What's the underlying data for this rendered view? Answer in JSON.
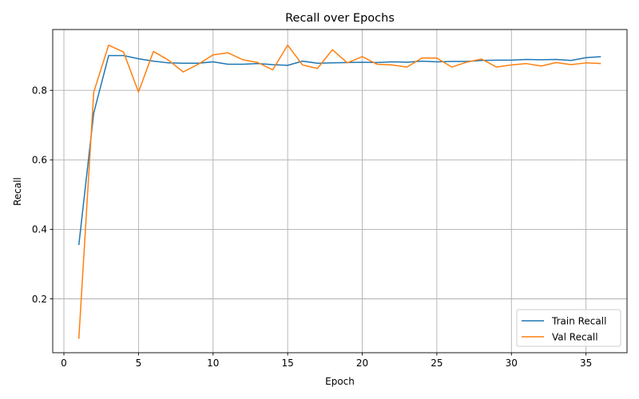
{
  "chart_data": {
    "type": "line",
    "title": "Recall over Epochs",
    "xlabel": "Epoch",
    "ylabel": "Recall",
    "xlim": [
      -0.75,
      37.75
    ],
    "ylim": [
      0.045,
      0.975
    ],
    "xticks": [
      0,
      5,
      10,
      15,
      20,
      25,
      30,
      35
    ],
    "yticks": [
      0.2,
      0.4,
      0.6,
      0.8
    ],
    "ytick_labels": [
      "0.2",
      "0.4",
      "0.6",
      "0.8"
    ],
    "grid": true,
    "legend_position": "lower-right",
    "x": [
      1,
      2,
      3,
      4,
      5,
      6,
      7,
      8,
      9,
      10,
      11,
      12,
      13,
      14,
      15,
      16,
      17,
      18,
      19,
      20,
      21,
      22,
      23,
      24,
      25,
      26,
      27,
      28,
      29,
      30,
      31,
      32,
      33,
      34,
      35,
      36
    ],
    "series": [
      {
        "name": "Train Recall",
        "color": "#1f77b4",
        "values": [
          0.355,
          0.735,
          0.9,
          0.9,
          0.891,
          0.884,
          0.879,
          0.878,
          0.878,
          0.882,
          0.875,
          0.875,
          0.877,
          0.874,
          0.872,
          0.884,
          0.878,
          0.879,
          0.88,
          0.881,
          0.88,
          0.882,
          0.881,
          0.884,
          0.882,
          0.883,
          0.883,
          0.886,
          0.887,
          0.887,
          0.889,
          0.888,
          0.889,
          0.886,
          0.894,
          0.897
        ]
      },
      {
        "name": "Val Recall",
        "color": "#ff7f0e",
        "values": [
          0.085,
          0.795,
          0.93,
          0.91,
          0.795,
          0.912,
          0.887,
          0.853,
          0.875,
          0.902,
          0.908,
          0.888,
          0.88,
          0.859,
          0.93,
          0.873,
          0.863,
          0.917,
          0.879,
          0.897,
          0.875,
          0.873,
          0.867,
          0.893,
          0.893,
          0.867,
          0.881,
          0.89,
          0.867,
          0.873,
          0.877,
          0.87,
          0.88,
          0.874,
          0.879,
          0.877
        ]
      }
    ]
  }
}
